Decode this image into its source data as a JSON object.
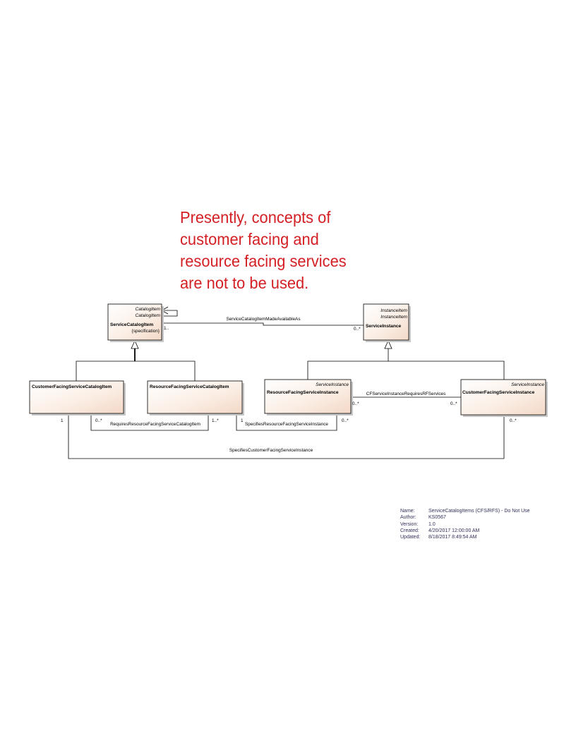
{
  "note": {
    "lines": [
      "Presently, concepts of",
      "customer facing and",
      "resource facing services",
      "are not to be used."
    ]
  },
  "classes": {
    "service_catalog_item": {
      "stereotype_1": "CatalogItem",
      "stereotype_2": "CatalogItem",
      "name": "ServiceCatalogItem",
      "sub": "{specification}"
    },
    "service_instance": {
      "stereotype_1": "InstanceItem",
      "stereotype_2": "InstanceItem",
      "name": "ServiceInstance"
    },
    "cfs_catalog_item": {
      "name": "CustomerFacingServiceCatalogItem"
    },
    "rfs_catalog_item": {
      "name": "ResourceFacingServiceCatalogItem"
    },
    "rfs_instance": {
      "stereotype": "ServiceInstance",
      "name": "ResourceFacingServiceInstance"
    },
    "cfs_instance": {
      "stereotype": "ServiceInstance",
      "name": "CustomerFacingServiceInstance"
    }
  },
  "associations": {
    "made_available_as": {
      "label": "ServiceCatalogItemMadeAvailableAs",
      "mult_source": "1..",
      "mult_target": "0..*"
    },
    "requires_rfs_catalog_item": {
      "label": "RequiresResourceFacingServiceCatalogItem",
      "mult_source": "0..*",
      "mult_target": "1..*"
    },
    "specifies_rfs_instance": {
      "label": "SpecifiesResourceFacingServiceInstance",
      "mult_source": "1",
      "mult_target": "0..*"
    },
    "cfs_requires_rf": {
      "label": "CFServiceInstanceRequiresRFServices",
      "mult_source": "0..*",
      "mult_target": "0..*"
    },
    "specifies_cfs_instance": {
      "label": "SpecifiesCustomerFacingServiceInstance",
      "mult_source": "1",
      "mult_target": "0..*"
    }
  },
  "meta": {
    "name_label": "Name:",
    "name_value": "ServiceCatalogItems (CFS/RFS) - Do Not Use",
    "author_label": "Author:",
    "author_value": "KS0567",
    "version_label": "Version:",
    "version_value": "1.0",
    "created_label": "Created:",
    "created_value": "4/20/2017 12:00:00 AM",
    "updated_label": "Updated:",
    "updated_value": "8/18/2017 8:49:54 AM"
  },
  "colors": {
    "note_text": "#d42024",
    "box_fill_light": "#ffffff",
    "box_fill_dark": "#f3d8c6",
    "meta_text": "#30305a"
  }
}
